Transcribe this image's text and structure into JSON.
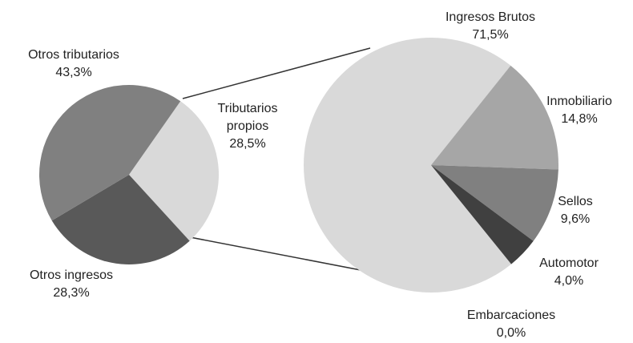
{
  "chart_data": [
    {
      "type": "pie",
      "categories": [
        "Tributarios propios",
        "Otros ingresos",
        "Otros tributarios"
      ],
      "values": [
        28.5,
        28.3,
        43.3
      ],
      "value_labels": [
        "28,5%",
        "28,3%",
        "43,3%"
      ],
      "colors": [
        "#d9d9d9",
        "#595959",
        "#808080"
      ]
    },
    {
      "type": "pie",
      "categories": [
        "Ingresos Brutos",
        "Inmobiliario",
        "Sellos",
        "Automotor",
        "Embarcaciones"
      ],
      "values": [
        71.5,
        14.8,
        9.6,
        4.0,
        0.0
      ],
      "value_labels": [
        "71,5%",
        "14,8%",
        "9,6%",
        "4,0%",
        "0,0%"
      ],
      "colors": [
        "#d9d9d9",
        "#a6a6a6",
        "#808080",
        "#404040",
        "#262626"
      ]
    }
  ]
}
